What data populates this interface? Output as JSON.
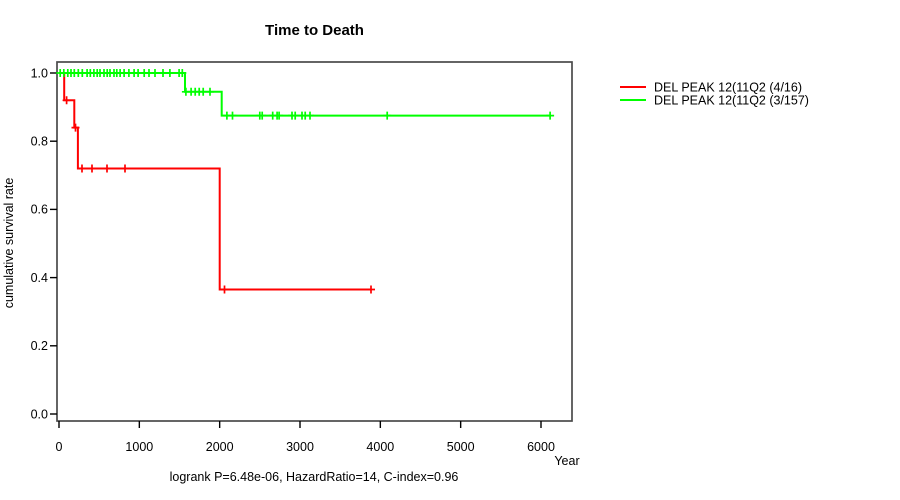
{
  "chart_data": {
    "type": "line",
    "subtype": "kaplan-meier-step",
    "title": "Time to Death",
    "xlabel": "Year",
    "ylabel": "cumulative survival rate",
    "footer": "logrank P=6.48e-06, HazardRatio=14, C-index=0.96",
    "xlim": [
      0,
      6000
    ],
    "ylim": [
      0.0,
      1.0
    ],
    "xticks": [
      0,
      1000,
      2000,
      3000,
      4000,
      5000,
      6000
    ],
    "yticks": [
      0.0,
      0.2,
      0.4,
      0.6,
      0.8,
      1.0
    ],
    "grid": false,
    "legend_position": "right-outside",
    "colors": {
      "series1": "#FF0000",
      "series2": "#00FF00",
      "box": "#4a4a4a",
      "text": "#000000"
    },
    "series": [
      {
        "name": "DEL PEAK 12(11Q2 (4/16)",
        "color": "#FF0000",
        "steps": [
          [
            0,
            1.0
          ],
          [
            65,
            1.0
          ],
          [
            65,
            0.92
          ],
          [
            190,
            0.92
          ],
          [
            190,
            0.84
          ],
          [
            235,
            0.84
          ],
          [
            235,
            0.72
          ],
          [
            2000,
            0.72
          ],
          [
            2000,
            0.365
          ],
          [
            3884,
            0.365
          ]
        ],
        "censors": [
          [
            95,
            0.92
          ],
          [
            205,
            0.84
          ],
          [
            286,
            0.72
          ],
          [
            411,
            0.72
          ],
          [
            598,
            0.72
          ],
          [
            822,
            0.72
          ],
          [
            2060,
            0.365
          ],
          [
            3884,
            0.365
          ]
        ]
      },
      {
        "name": "DEL PEAK 12(11Q2 (3/157)",
        "color": "#00FF00",
        "steps": [
          [
            0,
            1.0
          ],
          [
            1569,
            1.0
          ],
          [
            1569,
            0.945
          ],
          [
            2025,
            0.945
          ],
          [
            2025,
            0.875
          ],
          [
            6113,
            0.875
          ]
        ],
        "censors": [
          [
            15,
            1.0
          ],
          [
            60,
            1.0
          ],
          [
            110,
            1.0
          ],
          [
            150,
            1.0
          ],
          [
            190,
            1.0
          ],
          [
            240,
            1.0
          ],
          [
            290,
            1.0
          ],
          [
            350,
            1.0
          ],
          [
            390,
            1.0
          ],
          [
            435,
            1.0
          ],
          [
            475,
            1.0
          ],
          [
            510,
            1.0
          ],
          [
            560,
            1.0
          ],
          [
            600,
            1.0
          ],
          [
            635,
            1.0
          ],
          [
            685,
            1.0
          ],
          [
            720,
            1.0
          ],
          [
            760,
            1.0
          ],
          [
            810,
            1.0
          ],
          [
            870,
            1.0
          ],
          [
            935,
            1.0
          ],
          [
            985,
            1.0
          ],
          [
            1060,
            1.0
          ],
          [
            1120,
            1.0
          ],
          [
            1195,
            1.0
          ],
          [
            1295,
            1.0
          ],
          [
            1380,
            1.0
          ],
          [
            1495,
            1.0
          ],
          [
            1535,
            1.0
          ],
          [
            1580,
            0.945
          ],
          [
            1645,
            0.945
          ],
          [
            1695,
            0.945
          ],
          [
            1745,
            0.945
          ],
          [
            1795,
            0.945
          ],
          [
            1880,
            0.945
          ],
          [
            2090,
            0.875
          ],
          [
            2160,
            0.875
          ],
          [
            2500,
            0.875
          ],
          [
            2530,
            0.875
          ],
          [
            2660,
            0.875
          ],
          [
            2715,
            0.875
          ],
          [
            2740,
            0.875
          ],
          [
            2900,
            0.875
          ],
          [
            2940,
            0.875
          ],
          [
            3025,
            0.875
          ],
          [
            3065,
            0.875
          ],
          [
            3125,
            0.875
          ],
          [
            4085,
            0.875
          ],
          [
            6113,
            0.875
          ]
        ]
      }
    ]
  }
}
